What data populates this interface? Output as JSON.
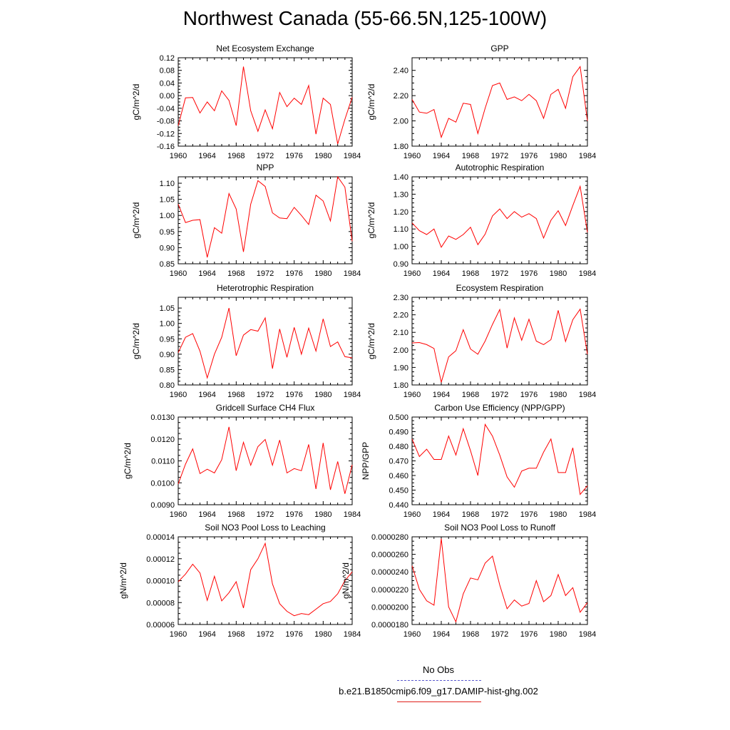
{
  "title": "Northwest Canada (55-66.5N,125-100W)",
  "legend": {
    "items": [
      {
        "label": "No Obs",
        "color": "#5a5acd",
        "style": "dashed"
      },
      {
        "label": "b.e21.B1850cmip6.f09_g17.DAMIP-hist-ghg.002",
        "color": "#e0201b",
        "style": "solid"
      }
    ]
  },
  "series_color": "#ff0000",
  "chart_data": [
    {
      "type": "line",
      "title": "Net Ecosystem Exchange",
      "ylabel": "gC/m^2/d",
      "xlim": [
        1960,
        1984
      ],
      "ylim": [
        -0.16,
        0.12
      ],
      "x_ticks": [
        "1960",
        "1964",
        "1968",
        "1972",
        "1976",
        "1980",
        "1984"
      ],
      "y_ticks": [
        "0.12",
        "0.08",
        "0.04",
        "0.00",
        "-0.04",
        "-0.08",
        "-0.12",
        "-0.16"
      ],
      "x": [
        1960,
        1961,
        1962,
        1963,
        1964,
        1965,
        1966,
        1967,
        1968,
        1969,
        1970,
        1971,
        1972,
        1973,
        1974,
        1975,
        1976,
        1977,
        1978,
        1979,
        1980,
        1981,
        1982,
        1983,
        1984
      ],
      "values": [
        -0.095,
        -0.007,
        -0.006,
        -0.055,
        -0.02,
        -0.048,
        0.015,
        -0.015,
        -0.095,
        0.092,
        -0.048,
        -0.113,
        -0.045,
        -0.105,
        0.01,
        -0.035,
        -0.008,
        -0.028,
        0.032,
        -0.122,
        -0.008,
        -0.028,
        -0.153,
        -0.075,
        -0.005
      ]
    },
    {
      "type": "line",
      "title": "GPP",
      "ylabel": "gC/m^2/d",
      "xlim": [
        1960,
        1984
      ],
      "ylim": [
        1.8,
        2.5
      ],
      "x_ticks": [
        "1960",
        "1964",
        "1968",
        "1972",
        "1976",
        "1980",
        "1984"
      ],
      "y_ticks": [
        "2.40",
        "2.20",
        "2.00",
        "1.80"
      ],
      "x": [
        1960,
        1961,
        1962,
        1963,
        1964,
        1965,
        1966,
        1967,
        1968,
        1969,
        1970,
        1971,
        1972,
        1973,
        1974,
        1975,
        1976,
        1977,
        1978,
        1979,
        1980,
        1981,
        1982,
        1983,
        1984
      ],
      "values": [
        2.17,
        2.07,
        2.06,
        2.09,
        1.87,
        2.02,
        1.99,
        2.14,
        2.13,
        1.9,
        2.1,
        2.28,
        2.3,
        2.17,
        2.19,
        2.16,
        2.21,
        2.16,
        2.02,
        2.21,
        2.25,
        2.1,
        2.35,
        2.43,
        2.0
      ]
    },
    {
      "type": "line",
      "title": "NPP",
      "ylabel": "gC/m^2/d",
      "xlim": [
        1960,
        1984
      ],
      "ylim": [
        0.85,
        1.12
      ],
      "x_ticks": [
        "1960",
        "1964",
        "1968",
        "1972",
        "1976",
        "1980",
        "1984"
      ],
      "y_ticks": [
        "1.10",
        "1.05",
        "1.00",
        "0.95",
        "0.90",
        "0.85"
      ],
      "x": [
        1960,
        1961,
        1962,
        1963,
        1964,
        1965,
        1966,
        1967,
        1968,
        1969,
        1970,
        1971,
        1972,
        1973,
        1974,
        1975,
        1976,
        1977,
        1978,
        1979,
        1980,
        1981,
        1982,
        1983,
        1984
      ],
      "values": [
        1.035,
        0.978,
        0.985,
        0.987,
        0.87,
        0.962,
        0.945,
        1.068,
        1.02,
        0.887,
        1.035,
        1.108,
        1.09,
        1.008,
        0.992,
        0.99,
        1.025,
        1.0,
        0.972,
        1.063,
        1.045,
        0.983,
        1.12,
        1.088,
        0.92
      ]
    },
    {
      "type": "line",
      "title": "Autotrophic Respiration",
      "ylabel": "gC/m^2/d",
      "xlim": [
        1960,
        1984
      ],
      "ylim": [
        0.9,
        1.4
      ],
      "x_ticks": [
        "1960",
        "1964",
        "1968",
        "1972",
        "1976",
        "1980",
        "1984"
      ],
      "y_ticks": [
        "1.40",
        "1.30",
        "1.20",
        "1.10",
        "1.00",
        "0.90"
      ],
      "x": [
        1960,
        1961,
        1962,
        1963,
        1964,
        1965,
        1966,
        1967,
        1968,
        1969,
        1970,
        1971,
        1972,
        1973,
        1974,
        1975,
        1976,
        1977,
        1978,
        1979,
        1980,
        1981,
        1982,
        1983,
        1984
      ],
      "values": [
        1.135,
        1.09,
        1.068,
        1.1,
        0.995,
        1.06,
        1.04,
        1.068,
        1.11,
        1.01,
        1.07,
        1.175,
        1.215,
        1.16,
        1.2,
        1.168,
        1.188,
        1.16,
        1.048,
        1.15,
        1.205,
        1.12,
        1.235,
        1.345,
        1.08
      ]
    },
    {
      "type": "line",
      "title": "Heterotrophic Respiration",
      "ylabel": "gC/m^2/d",
      "xlim": [
        1960,
        1984
      ],
      "ylim": [
        0.8,
        1.085
      ],
      "x_ticks": [
        "1960",
        "1964",
        "1968",
        "1972",
        "1976",
        "1980",
        "1984"
      ],
      "y_ticks": [
        "1.05",
        "1.00",
        "0.95",
        "0.90",
        "0.85",
        "0.80"
      ],
      "x": [
        1960,
        1961,
        1962,
        1963,
        1964,
        1965,
        1966,
        1967,
        1968,
        1969,
        1970,
        1971,
        1972,
        1973,
        1974,
        1975,
        1976,
        1977,
        1978,
        1979,
        1980,
        1981,
        1982,
        1983,
        1984
      ],
      "values": [
        0.905,
        0.955,
        0.967,
        0.91,
        0.823,
        0.9,
        0.955,
        1.05,
        0.895,
        0.962,
        0.98,
        0.975,
        1.018,
        0.853,
        0.982,
        0.89,
        0.987,
        0.9,
        0.985,
        0.91,
        1.015,
        0.925,
        0.94,
        0.892,
        0.888
      ]
    },
    {
      "type": "line",
      "title": "Ecosystem Respiration",
      "ylabel": "gC/m^2/d",
      "xlim": [
        1960,
        1984
      ],
      "ylim": [
        1.8,
        2.3
      ],
      "x_ticks": [
        "1960",
        "1964",
        "1968",
        "1972",
        "1976",
        "1980",
        "1984"
      ],
      "y_ticks": [
        "2.30",
        "2.20",
        "2.10",
        "2.00",
        "1.90",
        "1.80"
      ],
      "x": [
        1960,
        1961,
        1962,
        1963,
        1964,
        1965,
        1966,
        1967,
        1968,
        1969,
        1970,
        1971,
        1972,
        1973,
        1974,
        1975,
        1976,
        1977,
        1978,
        1979,
        1980,
        1981,
        1982,
        1983,
        1984
      ],
      "values": [
        2.04,
        2.042,
        2.03,
        2.008,
        1.815,
        1.96,
        1.995,
        2.115,
        2.005,
        1.975,
        2.05,
        2.145,
        2.23,
        2.01,
        2.182,
        2.055,
        2.175,
        2.05,
        2.03,
        2.058,
        2.225,
        2.048,
        2.172,
        2.232,
        1.975
      ]
    },
    {
      "type": "line",
      "title": "Gridcell Surface CH4 Flux",
      "ylabel": "gC/m^2/d",
      "xlim": [
        1960,
        1984
      ],
      "ylim": [
        0.009,
        0.013
      ],
      "x_ticks": [
        "1960",
        "1964",
        "1968",
        "1972",
        "1976",
        "1980",
        "1984"
      ],
      "y_ticks": [
        "0.0130",
        "0.0120",
        "0.0110",
        "0.0100",
        "0.0090"
      ],
      "x": [
        1960,
        1961,
        1962,
        1963,
        1964,
        1965,
        1966,
        1967,
        1968,
        1969,
        1970,
        1971,
        1972,
        1973,
        1974,
        1975,
        1976,
        1977,
        1978,
        1979,
        1980,
        1981,
        1982,
        1983,
        1984
      ],
      "values": [
        0.00995,
        0.01085,
        0.01155,
        0.01042,
        0.01062,
        0.01045,
        0.01105,
        0.01255,
        0.01055,
        0.01185,
        0.0108,
        0.01165,
        0.01198,
        0.0108,
        0.01195,
        0.01045,
        0.01065,
        0.01055,
        0.01175,
        0.00972,
        0.01182,
        0.00968,
        0.01097,
        0.0095,
        0.01082
      ]
    },
    {
      "type": "line",
      "title": "Carbon Use Efficiency (NPP/GPP)",
      "ylabel": "NPP/GPP",
      "xlim": [
        1960,
        1984
      ],
      "ylim": [
        0.44,
        0.5
      ],
      "x_ticks": [
        "1960",
        "1964",
        "1968",
        "1972",
        "1976",
        "1980",
        "1984"
      ],
      "y_ticks": [
        "0.500",
        "0.490",
        "0.480",
        "0.470",
        "0.460",
        "0.450",
        "0.440"
      ],
      "x": [
        1960,
        1961,
        1962,
        1963,
        1964,
        1965,
        1966,
        1967,
        1968,
        1969,
        1970,
        1971,
        1972,
        1973,
        1974,
        1975,
        1976,
        1977,
        1978,
        1979,
        1980,
        1981,
        1982,
        1983,
        1984
      ],
      "values": [
        0.485,
        0.473,
        0.478,
        0.471,
        0.471,
        0.487,
        0.474,
        0.492,
        0.477,
        0.46,
        0.495,
        0.487,
        0.474,
        0.459,
        0.452,
        0.463,
        0.465,
        0.465,
        0.476,
        0.485,
        0.462,
        0.462,
        0.479,
        0.447,
        0.453
      ]
    },
    {
      "type": "line",
      "title": "Soil NO3 Pool Loss to Leaching",
      "ylabel": "gN/m^2/d",
      "xlim": [
        1960,
        1984
      ],
      "ylim": [
        6e-05,
        0.00014
      ],
      "x_ticks": [
        "1960",
        "1964",
        "1968",
        "1972",
        "1976",
        "1980",
        "1984"
      ],
      "y_ticks": [
        "0.00014",
        "0.00012",
        "0.00010",
        "0.00008",
        "0.00006"
      ],
      "x": [
        1960,
        1961,
        1962,
        1963,
        1964,
        1965,
        1966,
        1967,
        1968,
        1969,
        1970,
        1971,
        1972,
        1973,
        1974,
        1975,
        1976,
        1977,
        1978,
        1979,
        1980,
        1981,
        1982,
        1983,
        1984
      ],
      "values": [
        9.9e-05,
        0.000106,
        0.000115,
        0.000107,
        8.2e-05,
        0.000104,
        8.15e-05,
        8.9e-05,
        9.9e-05,
        7.5e-05,
        0.00011,
        0.00012,
        0.000134,
        9.7e-05,
        7.9e-05,
        7.2e-05,
        6.8e-05,
        7e-05,
        6.9e-05,
        7.4e-05,
        7.9e-05,
        8.1e-05,
        8.8e-05,
        0.0001,
        0.000108
      ]
    },
    {
      "type": "line",
      "title": "Soil NO3 Pool Loss to Runoff",
      "ylabel": "gN/m^2/d",
      "xlim": [
        1960,
        1984
      ],
      "ylim": [
        1.8e-05,
        2.8e-05
      ],
      "x_ticks": [
        "1960",
        "1964",
        "1968",
        "1972",
        "1976",
        "1980",
        "1984"
      ],
      "y_ticks": [
        "0.0000280",
        "0.0000260",
        "0.0000240",
        "0.0000220",
        "0.0000200",
        "0.0000180"
      ],
      "x": [
        1960,
        1961,
        1962,
        1963,
        1964,
        1965,
        1966,
        1967,
        1968,
        1969,
        1970,
        1971,
        1972,
        1973,
        1974,
        1975,
        1976,
        1977,
        1978,
        1979,
        1980,
        1981,
        1982,
        1983,
        1984
      ],
      "values": [
        2.47e-05,
        2.2e-05,
        2.07e-05,
        2.02e-05,
        2.78e-05,
        2e-05,
        1.83e-05,
        2.15e-05,
        2.33e-05,
        2.31e-05,
        2.5e-05,
        2.58e-05,
        2.25e-05,
        1.98e-05,
        2.08e-05,
        2.01e-05,
        2.04e-05,
        2.3e-05,
        2.06e-05,
        2.13e-05,
        2.37e-05,
        2.13e-05,
        2.22e-05,
        1.94e-05,
        2.05e-05
      ]
    }
  ]
}
